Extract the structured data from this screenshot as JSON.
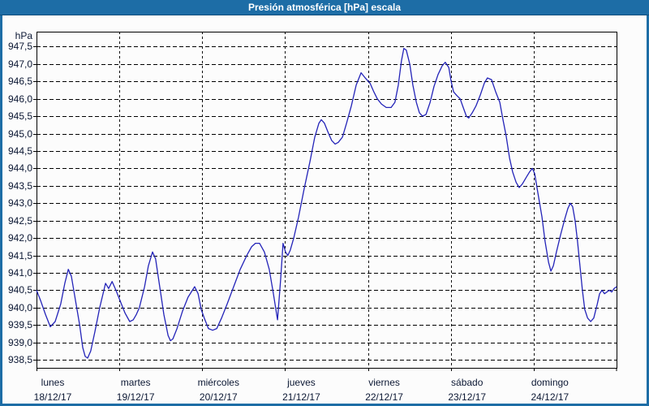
{
  "window": {
    "title": "Presión atmosférica [hPa] escala"
  },
  "colors": {
    "titlebar_bg": "#1d6da6",
    "titlebar_text": "#ffffff",
    "content_bg": "#fcfcfc",
    "axis_text": "#0b1733",
    "grid": "#000000",
    "frame": "#000000",
    "line": "#2323b8"
  },
  "chart_data": {
    "type": "line",
    "title": "Presión atmosférica [hPa] escala",
    "unit_label": "hPa",
    "ylabel": "hPa",
    "xlabel": "",
    "grid": "on",
    "legend": "none",
    "ylim": [
      938.27,
      947.93
    ],
    "x_range_hours": [
      0,
      168
    ],
    "y_ticks": [
      {
        "value": 947.5,
        "label": "947,5"
      },
      {
        "value": 947.0,
        "label": "947,0"
      },
      {
        "value": 946.5,
        "label": "946,5"
      },
      {
        "value": 946.0,
        "label": "946,0"
      },
      {
        "value": 945.5,
        "label": "945,5"
      },
      {
        "value": 945.0,
        "label": "945,0"
      },
      {
        "value": 944.5,
        "label": "944,5"
      },
      {
        "value": 944.0,
        "label": "944,0"
      },
      {
        "value": 943.5,
        "label": "943,5"
      },
      {
        "value": 943.0,
        "label": "943,0"
      },
      {
        "value": 942.5,
        "label": "942,5"
      },
      {
        "value": 942.0,
        "label": "942,0"
      },
      {
        "value": 941.5,
        "label": "941,5"
      },
      {
        "value": 941.0,
        "label": "941,0"
      },
      {
        "value": 940.5,
        "label": "940,5"
      },
      {
        "value": 940.0,
        "label": "940,0"
      },
      {
        "value": 939.5,
        "label": "939,5"
      },
      {
        "value": 939.0,
        "label": "939,0"
      },
      {
        "value": 938.5,
        "label": "938,5"
      }
    ],
    "x_days": [
      {
        "weekday": "lunes",
        "date": "18/12/17"
      },
      {
        "weekday": "martes",
        "date": "19/12/17"
      },
      {
        "weekday": "miércoles",
        "date": "20/12/17"
      },
      {
        "weekday": "jueves",
        "date": "21/12/17"
      },
      {
        "weekday": "viernes",
        "date": "22/12/17"
      },
      {
        "weekday": "sábado",
        "date": "23/12/17"
      },
      {
        "weekday": "domingo",
        "date": "24/12/17"
      }
    ],
    "series": [
      {
        "name": "Presión atmosférica",
        "points": [
          [
            0,
            940.5
          ],
          [
            1.2,
            940.2
          ],
          [
            2.6,
            939.8
          ],
          [
            4,
            939.45
          ],
          [
            5.4,
            939.6
          ],
          [
            7,
            940.1
          ],
          [
            8.2,
            940.7
          ],
          [
            9.2,
            941.1
          ],
          [
            10.1,
            940.9
          ],
          [
            11.3,
            940.2
          ],
          [
            12.5,
            939.5
          ],
          [
            13.4,
            938.85
          ],
          [
            14.1,
            938.6
          ],
          [
            14.8,
            938.55
          ],
          [
            15.7,
            938.75
          ],
          [
            16.9,
            939.3
          ],
          [
            18.3,
            940.0
          ],
          [
            20,
            940.7
          ],
          [
            20.9,
            940.55
          ],
          [
            21.9,
            940.75
          ],
          [
            23,
            940.5
          ],
          [
            24.2,
            940.2
          ],
          [
            25.6,
            939.85
          ],
          [
            27,
            939.6
          ],
          [
            28,
            939.65
          ],
          [
            28.9,
            939.8
          ],
          [
            29.8,
            940.0
          ],
          [
            31.3,
            940.6
          ],
          [
            32.4,
            941.2
          ],
          [
            33.6,
            941.6
          ],
          [
            34.5,
            941.4
          ],
          [
            35.7,
            940.6
          ],
          [
            36.9,
            939.8
          ],
          [
            38.1,
            939.2
          ],
          [
            38.8,
            939.05
          ],
          [
            39.5,
            939.1
          ],
          [
            40.7,
            939.4
          ],
          [
            42.3,
            939.9
          ],
          [
            43.9,
            940.3
          ],
          [
            45.8,
            940.6
          ],
          [
            46.8,
            940.4
          ],
          [
            47.7,
            939.95
          ],
          [
            48.6,
            939.7
          ],
          [
            49.8,
            939.4
          ],
          [
            51,
            939.35
          ],
          [
            52.2,
            939.4
          ],
          [
            53.6,
            939.7
          ],
          [
            55.2,
            940.1
          ],
          [
            57.1,
            940.6
          ],
          [
            59,
            941.1
          ],
          [
            60.9,
            941.5
          ],
          [
            62.3,
            941.75
          ],
          [
            63.4,
            941.85
          ],
          [
            64.6,
            941.85
          ],
          [
            66,
            941.6
          ],
          [
            67.4,
            941.1
          ],
          [
            68.6,
            940.4
          ],
          [
            69.8,
            939.65
          ],
          [
            70.7,
            940.8
          ],
          [
            71.4,
            941.85
          ],
          [
            72.1,
            941.6
          ],
          [
            72.8,
            941.5
          ],
          [
            73.5,
            941.65
          ],
          [
            74.5,
            942.0
          ],
          [
            75.9,
            942.6
          ],
          [
            77.5,
            943.4
          ],
          [
            79.2,
            944.2
          ],
          [
            80.6,
            944.9
          ],
          [
            81.8,
            945.3
          ],
          [
            82.5,
            945.4
          ],
          [
            83.4,
            945.3
          ],
          [
            84.6,
            945.0
          ],
          [
            85.5,
            944.8
          ],
          [
            86.5,
            944.7
          ],
          [
            87.4,
            944.75
          ],
          [
            88.6,
            944.9
          ],
          [
            89.8,
            945.3
          ],
          [
            91.2,
            945.8
          ],
          [
            92.6,
            946.4
          ],
          [
            94,
            946.75
          ],
          [
            95.2,
            946.6
          ],
          [
            96.6,
            946.45
          ],
          [
            97.7,
            946.2
          ],
          [
            98.7,
            946.0
          ],
          [
            99.9,
            945.85
          ],
          [
            101.3,
            945.75
          ],
          [
            102.7,
            945.75
          ],
          [
            103.8,
            945.9
          ],
          [
            104.8,
            946.4
          ],
          [
            105.7,
            947.1
          ],
          [
            106.4,
            947.45
          ],
          [
            107.1,
            947.4
          ],
          [
            108.1,
            947.0
          ],
          [
            109,
            946.4
          ],
          [
            110,
            945.9
          ],
          [
            110.9,
            945.6
          ],
          [
            111.8,
            945.5
          ],
          [
            112.8,
            945.55
          ],
          [
            114,
            945.9
          ],
          [
            115.1,
            946.35
          ],
          [
            116.3,
            946.7
          ],
          [
            117.5,
            946.95
          ],
          [
            118.4,
            947.05
          ],
          [
            119.4,
            946.9
          ],
          [
            120.1,
            946.5
          ],
          [
            120.8,
            946.2
          ],
          [
            121.7,
            946.1
          ],
          [
            122.7,
            946.0
          ],
          [
            123.6,
            945.75
          ],
          [
            124.5,
            945.5
          ],
          [
            125.2,
            945.45
          ],
          [
            126.2,
            945.6
          ],
          [
            127.3,
            945.8
          ],
          [
            128.5,
            946.1
          ],
          [
            129.7,
            946.45
          ],
          [
            130.6,
            946.6
          ],
          [
            131.8,
            946.55
          ],
          [
            133,
            946.2
          ],
          [
            134.2,
            945.9
          ],
          [
            135.1,
            945.4
          ],
          [
            136,
            944.95
          ],
          [
            137,
            944.3
          ],
          [
            137.9,
            943.9
          ],
          [
            138.9,
            943.6
          ],
          [
            139.8,
            943.45
          ],
          [
            140.7,
            943.55
          ],
          [
            141.9,
            943.75
          ],
          [
            142.8,
            943.9
          ],
          [
            143.6,
            944.0
          ],
          [
            144.3,
            943.85
          ],
          [
            145.2,
            943.3
          ],
          [
            146.4,
            942.6
          ],
          [
            147.3,
            941.9
          ],
          [
            148.3,
            941.3
          ],
          [
            149,
            941.05
          ],
          [
            149.7,
            941.2
          ],
          [
            150.6,
            941.6
          ],
          [
            151.8,
            942.1
          ],
          [
            153,
            942.55
          ],
          [
            153.9,
            942.85
          ],
          [
            154.6,
            943.0
          ],
          [
            155.3,
            942.9
          ],
          [
            156,
            942.5
          ],
          [
            156.7,
            941.9
          ],
          [
            157.4,
            941.2
          ],
          [
            158.1,
            940.5
          ],
          [
            158.8,
            939.95
          ],
          [
            159.6,
            939.7
          ],
          [
            160.5,
            939.6
          ],
          [
            161.4,
            939.7
          ],
          [
            162.4,
            940.1
          ],
          [
            163.1,
            940.4
          ],
          [
            163.8,
            940.5
          ],
          [
            164.5,
            940.4
          ],
          [
            165.2,
            940.45
          ],
          [
            165.9,
            940.5
          ],
          [
            166.6,
            940.45
          ],
          [
            167.3,
            940.55
          ],
          [
            168,
            940.6
          ]
        ]
      }
    ]
  }
}
